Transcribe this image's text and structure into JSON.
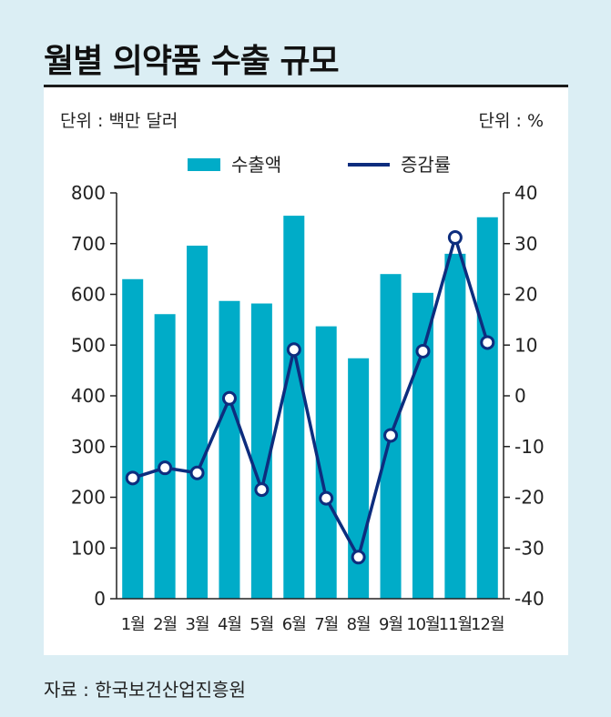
{
  "title": "월별 의약품 수출 규모",
  "unit_left": "단위 : 백만 달러",
  "unit_right": "단위 : %",
  "source": "자료 : 한국보건산업진흥원",
  "colors": {
    "bar": "#00acc8",
    "line": "#0d2d7e",
    "axis": "#222222"
  },
  "chart_data": {
    "type": "bar",
    "categories": [
      "1월",
      "2월",
      "3월",
      "4월",
      "5월",
      "6월",
      "7월",
      "8월",
      "9월",
      "10월",
      "11월",
      "12월"
    ],
    "series": [
      {
        "name": "수출액",
        "type": "bar",
        "axis": "left",
        "values": [
          630,
          561,
          696,
          587,
          582,
          755,
          537,
          474,
          640,
          603,
          680,
          752
        ]
      },
      {
        "name": "증감률",
        "type": "line",
        "axis": "right",
        "values": [
          -16.2,
          -14.2,
          -15.2,
          -0.5,
          -18.5,
          9.1,
          -20.2,
          -31.8,
          -7.8,
          8.8,
          31.2,
          10.5
        ]
      }
    ],
    "ylim": [
      0,
      800
    ],
    "yticks": [
      "0",
      "100",
      "200",
      "300",
      "400",
      "500",
      "600",
      "700",
      "800"
    ],
    "y2lim": [
      -40,
      40
    ],
    "y2ticks": [
      "-40",
      "-30",
      "-20",
      "-10",
      "0",
      "10",
      "20",
      "30",
      "40"
    ],
    "legend_position": "top-center",
    "grid": false
  }
}
